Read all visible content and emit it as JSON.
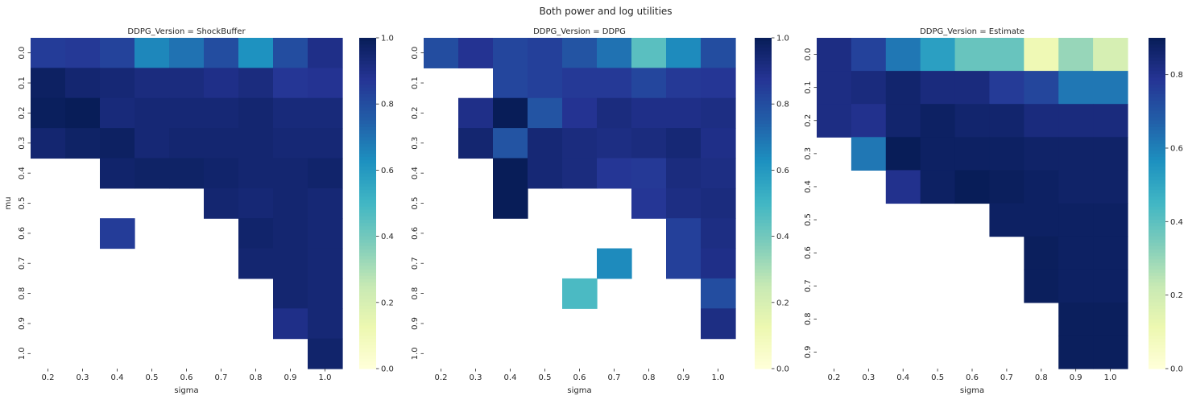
{
  "figure": {
    "title": "Both power and log utilities"
  },
  "chart_data": [
    {
      "type": "heatmap",
      "title": "DDPG_Version = ShockBuffer",
      "xlabel": "sigma",
      "ylabel": "mu",
      "x": [
        "0.2",
        "0.3",
        "0.4",
        "0.5",
        "0.6",
        "0.7",
        "0.8",
        "0.9",
        "1.0"
      ],
      "y": [
        "0.0",
        "0.1",
        "0.2",
        "0.3",
        "0.4",
        "0.5",
        "0.6",
        "0.7",
        "0.8",
        "0.9",
        "1.0"
      ],
      "colormap": "YlGnBu",
      "vmin": 0.0,
      "vmax": 1.0,
      "colorbar_ticks": [
        "0.0",
        "0.2",
        "0.4",
        "0.6",
        "0.8",
        "1.0"
      ],
      "values": [
        [
          0.85,
          0.86,
          0.83,
          0.65,
          0.7,
          0.8,
          0.62,
          0.8,
          0.9
        ],
        [
          0.98,
          0.95,
          0.94,
          0.92,
          0.92,
          0.9,
          0.92,
          0.87,
          0.88
        ],
        [
          0.99,
          1.0,
          0.93,
          0.94,
          0.94,
          0.94,
          0.95,
          0.93,
          0.93
        ],
        [
          0.95,
          0.97,
          0.98,
          0.94,
          0.95,
          0.95,
          0.95,
          0.94,
          0.94
        ],
        [
          null,
          null,
          0.96,
          0.97,
          0.97,
          0.96,
          0.95,
          0.95,
          0.96
        ],
        [
          null,
          null,
          null,
          null,
          null,
          0.95,
          0.94,
          0.95,
          0.94
        ],
        [
          null,
          null,
          0.85,
          null,
          null,
          null,
          0.96,
          0.95,
          0.94
        ],
        [
          null,
          null,
          null,
          null,
          null,
          null,
          0.95,
          0.95,
          0.94
        ],
        [
          null,
          null,
          null,
          null,
          null,
          null,
          null,
          0.95,
          0.94
        ],
        [
          null,
          null,
          null,
          null,
          null,
          null,
          null,
          0.9,
          0.94
        ],
        [
          null,
          null,
          null,
          null,
          null,
          null,
          null,
          null,
          0.96
        ]
      ]
    },
    {
      "type": "heatmap",
      "title": "DDPG_Version = DDPG",
      "xlabel": "sigma",
      "ylabel": "",
      "x": [
        "0.2",
        "0.3",
        "0.4",
        "0.5",
        "0.6",
        "0.7",
        "0.8",
        "0.9",
        "1.0"
      ],
      "y": [
        "0.0",
        "0.1",
        "0.2",
        "0.3",
        "0.4",
        "0.5",
        "0.6",
        "0.7",
        "0.8",
        "0.9",
        "1.0"
      ],
      "colormap": "YlGnBu",
      "vmin": 0.0,
      "vmax": 1.0,
      "colorbar_ticks": [
        "0.0",
        "0.2",
        "0.4",
        "0.6",
        "0.8",
        "1.0"
      ],
      "values": [
        [
          0.8,
          0.88,
          0.82,
          0.84,
          0.78,
          0.7,
          0.45,
          0.64,
          0.8
        ],
        [
          null,
          null,
          0.82,
          0.84,
          0.86,
          0.86,
          0.82,
          0.86,
          0.87
        ],
        [
          null,
          0.9,
          1.0,
          0.78,
          0.88,
          0.92,
          0.9,
          0.9,
          0.91
        ],
        [
          null,
          0.95,
          0.78,
          0.94,
          0.92,
          0.91,
          0.92,
          0.94,
          0.9
        ],
        [
          null,
          null,
          1.0,
          0.94,
          0.92,
          0.87,
          0.86,
          0.92,
          0.91
        ],
        [
          null,
          null,
          1.0,
          null,
          null,
          null,
          0.87,
          0.91,
          0.92
        ],
        [
          null,
          null,
          null,
          null,
          null,
          null,
          null,
          0.84,
          0.91
        ],
        [
          null,
          null,
          null,
          null,
          null,
          0.64,
          null,
          0.84,
          0.9
        ],
        [
          null,
          null,
          null,
          null,
          0.48,
          null,
          null,
          null,
          0.8
        ],
        [
          null,
          null,
          null,
          null,
          null,
          null,
          null,
          null,
          0.91
        ],
        [
          null,
          null,
          null,
          null,
          null,
          null,
          null,
          null,
          null
        ]
      ]
    },
    {
      "type": "heatmap",
      "title": "DDPG_Version = Estimate",
      "xlabel": "sigma",
      "ylabel": "",
      "x": [
        "0.2",
        "0.3",
        "0.4",
        "0.5",
        "0.6",
        "0.7",
        "0.8",
        "0.9",
        "1.0"
      ],
      "y": [
        "0.0",
        "0.1",
        "0.2",
        "0.3",
        "0.4",
        "0.5",
        "0.6",
        "0.7",
        "0.8",
        "0.9"
      ],
      "colormap": "YlGnBu",
      "vmin": 0.0,
      "vmax": 0.9,
      "colorbar_ticks": [
        "0.0",
        "0.2",
        "0.4",
        "0.6",
        "0.8"
      ],
      "values": [
        [
          0.82,
          0.75,
          0.62,
          0.52,
          0.38,
          0.38,
          0.1,
          0.3,
          0.18
        ],
        [
          0.82,
          0.83,
          0.86,
          0.83,
          0.83,
          0.77,
          0.74,
          0.62,
          0.62
        ],
        [
          0.82,
          0.8,
          0.86,
          0.88,
          0.86,
          0.86,
          0.83,
          0.83,
          0.83
        ],
        [
          null,
          0.62,
          0.9,
          0.88,
          0.88,
          0.88,
          0.87,
          0.87,
          0.87
        ],
        [
          null,
          null,
          0.8,
          0.88,
          0.92,
          0.89,
          0.88,
          0.87,
          0.87
        ],
        [
          null,
          null,
          null,
          null,
          null,
          0.88,
          0.88,
          0.88,
          0.88
        ],
        [
          null,
          null,
          null,
          null,
          null,
          null,
          0.89,
          0.88,
          0.88
        ],
        [
          null,
          null,
          null,
          null,
          null,
          null,
          0.89,
          0.88,
          0.88
        ],
        [
          null,
          null,
          null,
          null,
          null,
          null,
          null,
          0.89,
          0.89
        ],
        [
          null,
          null,
          null,
          null,
          null,
          null,
          null,
          0.89,
          0.89
        ]
      ]
    }
  ]
}
